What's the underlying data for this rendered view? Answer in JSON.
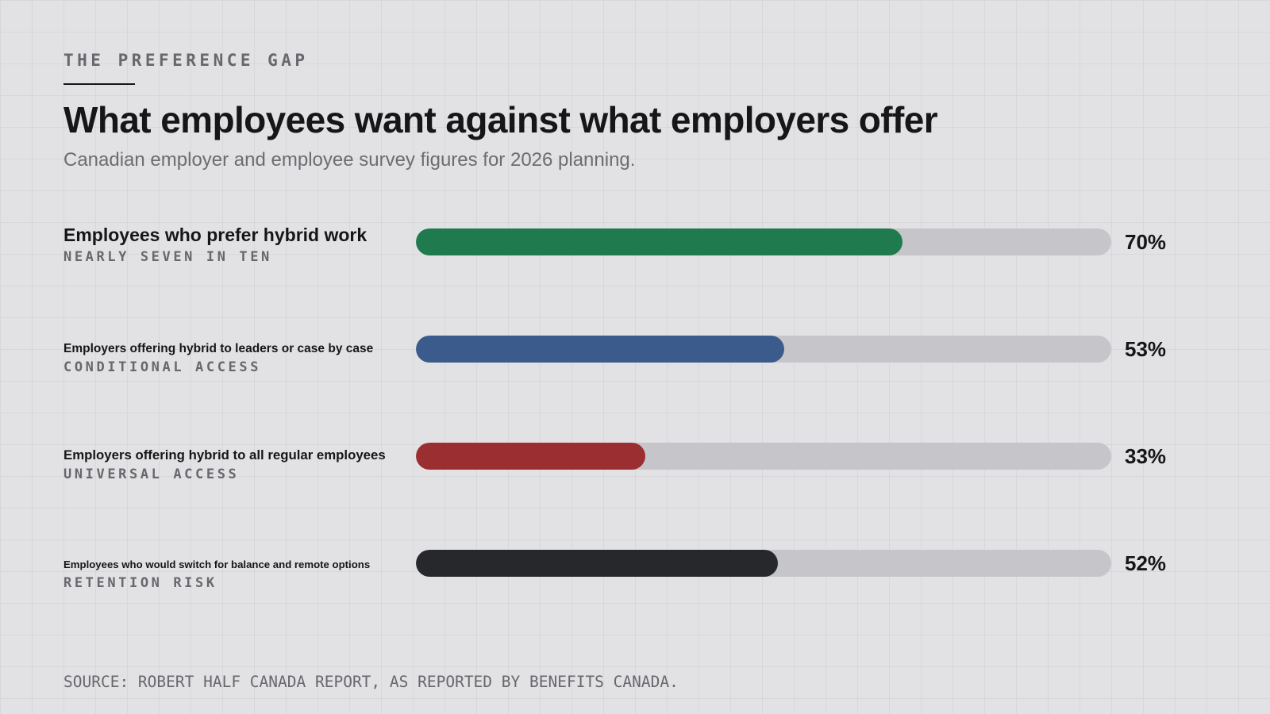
{
  "header": {
    "eyebrow": "THE PREFERENCE GAP",
    "title": "What employees want against what employers offer",
    "subtitle": "Canadian employer and employee survey figures for 2026 planning."
  },
  "chart_data": {
    "type": "bar",
    "orientation": "horizontal",
    "xlim": [
      0,
      100
    ],
    "unit": "%",
    "rows": [
      {
        "label": "Employees who prefer hybrid work",
        "note": "NEARLY SEVEN IN TEN",
        "value": 70,
        "display": "70%",
        "color": "#1f7a4d"
      },
      {
        "label": "Employers offering hybrid to leaders or case by case",
        "note": "CONDITIONAL ACCESS",
        "value": 53,
        "display": "53%",
        "color": "#3a5b8c"
      },
      {
        "label": "Employers offering hybrid to all regular employees",
        "note": "UNIVERSAL ACCESS",
        "value": 33,
        "display": "33%",
        "color": "#9b2e31"
      },
      {
        "label": "Employees who would switch for balance and remote options",
        "note": "RETENTION RISK",
        "value": 52,
        "display": "52%",
        "color": "#27282c"
      }
    ],
    "track_color": "#c6c6ca"
  },
  "footer": {
    "source": "SOURCE: ROBERT HALF CANADA REPORT, AS REPORTED BY BENEFITS CANADA."
  }
}
